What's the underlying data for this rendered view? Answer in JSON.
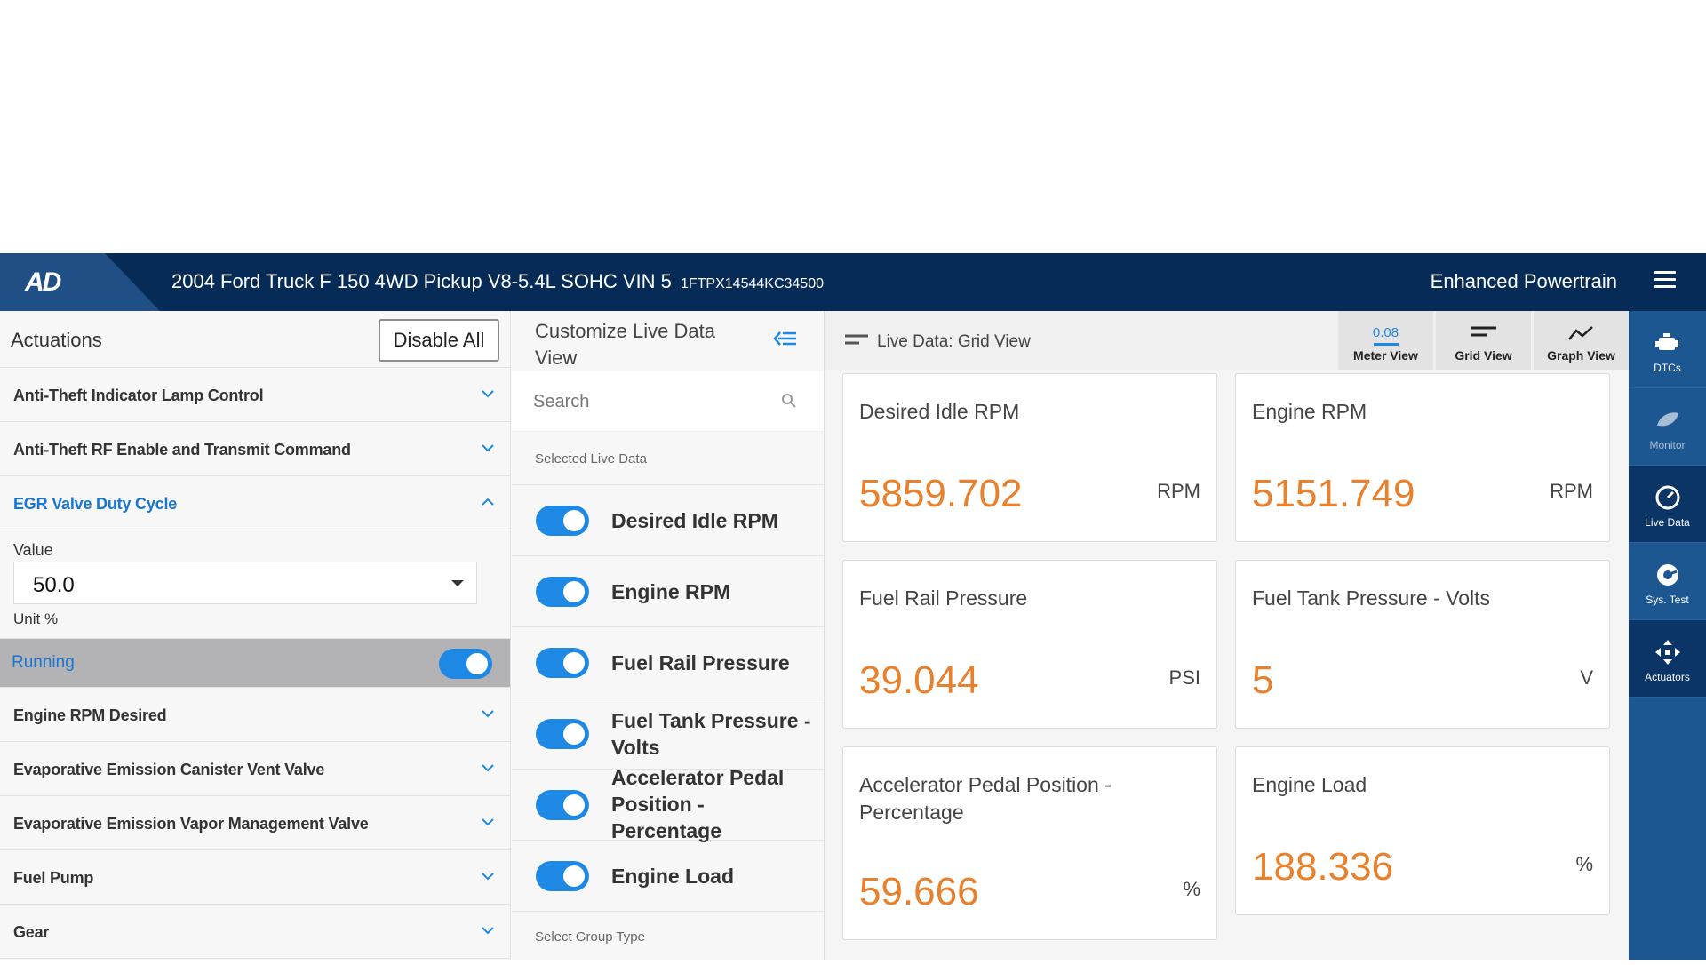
{
  "header": {
    "logo": "AD",
    "vehicle": "2004 Ford Truck F 150 4WD Pickup V8-5.4L SOHC VIN 5",
    "vin": "1FTPX14544KC34500",
    "module": "Enhanced Powertrain"
  },
  "actuations": {
    "title": "Actuations",
    "disable_all": "Disable All",
    "items_before": [
      {
        "label": "Anti-Theft Indicator Lamp Control"
      },
      {
        "label": "Anti-Theft RF Enable and Transmit Command"
      }
    ],
    "open_item": {
      "label": "EGR Valve Duty Cycle",
      "value_label": "Value",
      "value": "50.0",
      "unit": "Unit %",
      "status": "Running",
      "running_on": true
    },
    "items_after": [
      {
        "label": "Engine RPM Desired"
      },
      {
        "label": "Evaporative Emission Canister Vent Valve"
      },
      {
        "label": "Evaporative Emission Vapor Management Valve"
      },
      {
        "label": "Fuel Pump"
      },
      {
        "label": "Gear"
      }
    ]
  },
  "customize": {
    "title": "Customize Live Data View",
    "search_placeholder": "Search",
    "selected_label": "Selected Live Data",
    "items": [
      {
        "label": "Desired Idle RPM",
        "on": true
      },
      {
        "label": "Engine RPM",
        "on": true
      },
      {
        "label": "Fuel Rail Pressure",
        "on": true
      },
      {
        "label": "Fuel Tank Pressure - Volts",
        "on": true
      },
      {
        "label": "Accelerator Pedal Position - Percentage",
        "on": true
      },
      {
        "label": "Engine Load",
        "on": true
      }
    ],
    "group_label": "Select Group Type"
  },
  "live": {
    "title": "Live Data: Grid View",
    "tabs": {
      "meter": "Meter View",
      "meter_value": "0.08",
      "grid": "Grid View",
      "graph": "Graph View"
    },
    "cards": [
      {
        "name": "Desired Idle RPM",
        "value": "5859.702",
        "unit": "RPM"
      },
      {
        "name": "Engine RPM",
        "value": "5151.749",
        "unit": "RPM"
      },
      {
        "name": "Fuel Rail Pressure",
        "value": "39.044",
        "unit": "PSI"
      },
      {
        "name": "Fuel Tank Pressure - Volts",
        "value": "5",
        "unit": "V"
      },
      {
        "name": "Accelerator Pedal Position - Percentage",
        "value": "59.666",
        "unit": "%"
      },
      {
        "name": "Engine Load",
        "value": "188.336",
        "unit": "%"
      }
    ]
  },
  "nav": {
    "dtcs": "DTCs",
    "monitor": "Monitor",
    "live_data": "Live Data",
    "sys_test": "Sys. Test",
    "actuators": "Actuators"
  },
  "colors": {
    "header_bg": "#062b57",
    "accent_blue": "#1e88e5",
    "value_orange": "#e8812e",
    "nav_bg": "#1d5791"
  }
}
